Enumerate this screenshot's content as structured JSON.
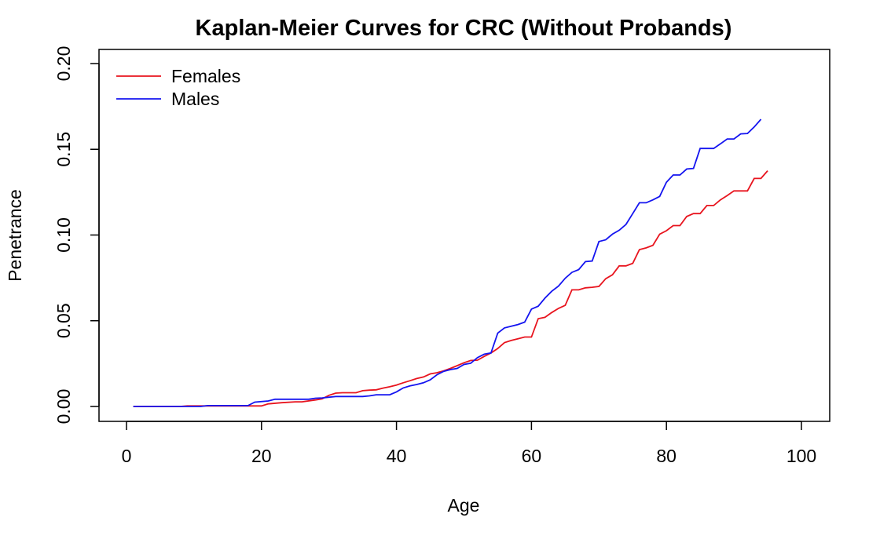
{
  "chart_data": {
    "type": "line",
    "title": "Kaplan-Meier Curves for CRC (Without Probands)",
    "xlabel": "Age",
    "ylabel": "Penetrance",
    "xlim": [
      0,
      100
    ],
    "ylim": [
      0,
      0.2
    ],
    "x_ticks": [
      "0",
      "20",
      "40",
      "60",
      "80",
      "100"
    ],
    "y_ticks": [
      "0.00",
      "0.05",
      "0.10",
      "0.15",
      "0.20"
    ],
    "grid": false,
    "legend_position": "top-left",
    "series": [
      {
        "name": "Females",
        "color": "#e8141e",
        "points": [
          [
            1,
            0
          ],
          [
            8,
            0
          ],
          [
            9,
            0.0003
          ],
          [
            18,
            0.0003
          ],
          [
            20,
            0.0003
          ],
          [
            21,
            0.0015
          ],
          [
            23,
            0.0022
          ],
          [
            25,
            0.0027
          ],
          [
            26,
            0.0027
          ],
          [
            28,
            0.0038
          ],
          [
            29,
            0.0045
          ],
          [
            30,
            0.0065
          ],
          [
            31,
            0.0078
          ],
          [
            32,
            0.008
          ],
          [
            34,
            0.008
          ],
          [
            35,
            0.0092
          ],
          [
            36,
            0.0095
          ],
          [
            37,
            0.0097
          ],
          [
            38,
            0.0107
          ],
          [
            39,
            0.0115
          ],
          [
            40,
            0.0125
          ],
          [
            41,
            0.0138
          ],
          [
            42,
            0.015
          ],
          [
            43,
            0.0163
          ],
          [
            44,
            0.0172
          ],
          [
            45,
            0.019
          ],
          [
            46,
            0.0197
          ],
          [
            47,
            0.0208
          ],
          [
            48,
            0.0222
          ],
          [
            49,
            0.0238
          ],
          [
            50,
            0.0255
          ],
          [
            51,
            0.0268
          ],
          [
            52,
            0.027
          ],
          [
            53,
            0.0292
          ],
          [
            54,
            0.0312
          ],
          [
            55,
            0.0338
          ],
          [
            56,
            0.0372
          ],
          [
            57,
            0.0385
          ],
          [
            58,
            0.0395
          ],
          [
            59,
            0.0405
          ],
          [
            60,
            0.0405
          ],
          [
            61,
            0.0512
          ],
          [
            62,
            0.052
          ],
          [
            63,
            0.0548
          ],
          [
            64,
            0.0572
          ],
          [
            65,
            0.059
          ],
          [
            66,
            0.068
          ],
          [
            67,
            0.068
          ],
          [
            68,
            0.0692
          ],
          [
            69,
            0.0695
          ],
          [
            70,
            0.07
          ],
          [
            71,
            0.0745
          ],
          [
            72,
            0.0768
          ],
          [
            73,
            0.082
          ],
          [
            74,
            0.082
          ],
          [
            75,
            0.0835
          ],
          [
            76,
            0.0915
          ],
          [
            77,
            0.0925
          ],
          [
            78,
            0.094
          ],
          [
            79,
            0.1005
          ],
          [
            80,
            0.1025
          ],
          [
            81,
            0.1055
          ],
          [
            82,
            0.1055
          ],
          [
            83,
            0.1108
          ],
          [
            84,
            0.1125
          ],
          [
            85,
            0.1125
          ],
          [
            86,
            0.1172
          ],
          [
            87,
            0.1172
          ],
          [
            88,
            0.1205
          ],
          [
            89,
            0.123
          ],
          [
            90,
            0.1257
          ],
          [
            91,
            0.1257
          ],
          [
            92,
            0.1257
          ],
          [
            93,
            0.133
          ],
          [
            94,
            0.133
          ],
          [
            95,
            0.1375
          ]
        ]
      },
      {
        "name": "Males",
        "color": "#1414f0",
        "points": [
          [
            1,
            0
          ],
          [
            11,
            0
          ],
          [
            12,
            0.0005
          ],
          [
            18,
            0.0005
          ],
          [
            19,
            0.0025
          ],
          [
            21,
            0.0032
          ],
          [
            22,
            0.0042
          ],
          [
            27,
            0.0042
          ],
          [
            28,
            0.0048
          ],
          [
            29,
            0.005
          ],
          [
            31,
            0.0058
          ],
          [
            35,
            0.0058
          ],
          [
            36,
            0.0062
          ],
          [
            37,
            0.0068
          ],
          [
            39,
            0.0068
          ],
          [
            40,
            0.0085
          ],
          [
            41,
            0.0108
          ],
          [
            42,
            0.012
          ],
          [
            43,
            0.0128
          ],
          [
            44,
            0.0138
          ],
          [
            45,
            0.0155
          ],
          [
            46,
            0.0185
          ],
          [
            47,
            0.0205
          ],
          [
            48,
            0.0215
          ],
          [
            49,
            0.0222
          ],
          [
            50,
            0.0245
          ],
          [
            51,
            0.0252
          ],
          [
            52,
            0.0285
          ],
          [
            53,
            0.0305
          ],
          [
            54,
            0.0312
          ],
          [
            55,
            0.0428
          ],
          [
            56,
            0.0458
          ],
          [
            57,
            0.0468
          ],
          [
            58,
            0.0478
          ],
          [
            59,
            0.0492
          ],
          [
            60,
            0.0568
          ],
          [
            61,
            0.0585
          ],
          [
            62,
            0.0632
          ],
          [
            63,
            0.0672
          ],
          [
            64,
            0.0702
          ],
          [
            65,
            0.0748
          ],
          [
            66,
            0.0782
          ],
          [
            67,
            0.0798
          ],
          [
            68,
            0.0845
          ],
          [
            69,
            0.0848
          ],
          [
            70,
            0.0962
          ],
          [
            71,
            0.0972
          ],
          [
            72,
            0.1005
          ],
          [
            73,
            0.1028
          ],
          [
            74,
            0.1062
          ],
          [
            75,
            0.1125
          ],
          [
            76,
            0.1188
          ],
          [
            77,
            0.1188
          ],
          [
            78,
            0.1205
          ],
          [
            79,
            0.1225
          ],
          [
            80,
            0.1308
          ],
          [
            81,
            0.135
          ],
          [
            82,
            0.135
          ],
          [
            83,
            0.1385
          ],
          [
            84,
            0.1388
          ],
          [
            85,
            0.1505
          ],
          [
            86,
            0.1505
          ],
          [
            87,
            0.1505
          ],
          [
            88,
            0.1532
          ],
          [
            89,
            0.156
          ],
          [
            90,
            0.156
          ],
          [
            91,
            0.159
          ],
          [
            92,
            0.1592
          ],
          [
            93,
            0.163
          ],
          [
            94,
            0.1675
          ]
        ]
      }
    ]
  }
}
